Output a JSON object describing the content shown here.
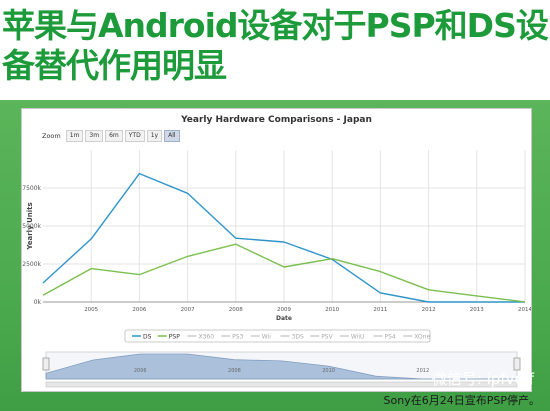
{
  "headline": {
    "line1": "苹果与Android设备对于PSP和DS设",
    "line2": "备替代作用明显"
  },
  "zoom": {
    "label": "Zoom",
    "buttons": [
      "1m",
      "3m",
      "6m",
      "YTD",
      "1y",
      "All"
    ],
    "active": "All"
  },
  "watermark": "微信号: ipfvoff",
  "footer": "Sony在6月24日宣布PSP停产。",
  "colors": {
    "ds": "#2f95c9",
    "psp": "#7abf4f",
    "accent": "#4aa84c"
  },
  "chart_data": {
    "type": "line",
    "title": "Yearly Hardware Comparisons - Japan",
    "xlabel": "Date",
    "ylabel": "Yearly Units",
    "x": [
      2004,
      2005,
      2006,
      2007,
      2008,
      2009,
      2010,
      2011,
      2012,
      2013,
      2014
    ],
    "x_ticks": [
      "2005",
      "2006",
      "2007",
      "2008",
      "2009",
      "2010",
      "2011",
      "2012",
      "2013",
      "2014"
    ],
    "y_ticks": [
      "0k",
      "2500k",
      "5000k",
      "7500k"
    ],
    "ylim": [
      0,
      10000
    ],
    "series": [
      {
        "name": "DS",
        "values": [
          1250,
          4150,
          8450,
          7150,
          4200,
          3950,
          2800,
          600,
          0,
          0,
          0
        ]
      },
      {
        "name": "PSP",
        "values": [
          450,
          2200,
          1800,
          3000,
          3800,
          2300,
          2850,
          2000,
          800,
          400,
          0
        ]
      }
    ],
    "legend": [
      "DS",
      "PSP",
      "X360",
      "PS3",
      "Wii",
      "3DS",
      "PSV",
      "WiiU",
      "PS4",
      "XOne"
    ],
    "legend_position": "bottom",
    "grid": true,
    "navigator_ticks": [
      "2006",
      "2008",
      "2010",
      "2012"
    ]
  }
}
